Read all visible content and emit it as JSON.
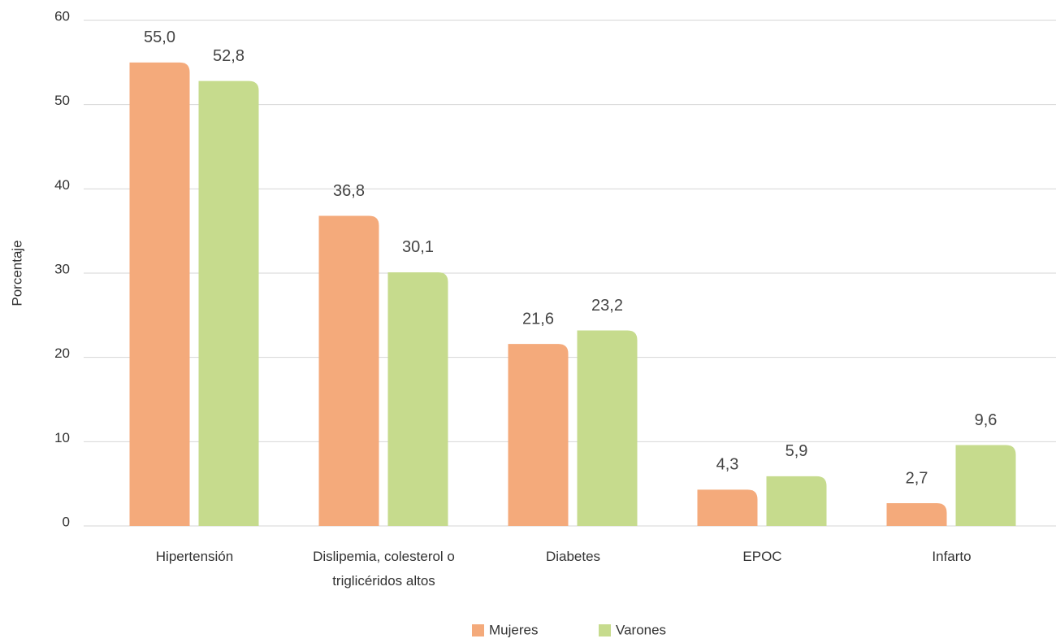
{
  "chart_data": {
    "type": "bar",
    "y_label": "Porcentaje",
    "categories": [
      "Hipertensión",
      "Dislipemia, colesterol o triglicéridos altos",
      "Diabetes",
      "EPOC",
      "Infarto"
    ],
    "series": [
      {
        "name": "Mujeres",
        "color": "#f4aa7b",
        "values": [
          55.0,
          36.8,
          21.6,
          4.3,
          2.7
        ],
        "value_labels": [
          "55,0",
          "36,8",
          "21,6",
          "4,3",
          "2,7"
        ]
      },
      {
        "name": "Varones",
        "color": "#c6db8d",
        "values": [
          52.8,
          30.1,
          23.2,
          5.9,
          9.6
        ],
        "value_labels": [
          "52,8",
          "30,1",
          "23,2",
          "5,9",
          "9,6"
        ]
      }
    ],
    "ylim": [
      0,
      60
    ],
    "yticks": [
      0,
      10,
      20,
      30,
      40,
      50,
      60
    ],
    "grid": true,
    "legend": "bottom"
  }
}
